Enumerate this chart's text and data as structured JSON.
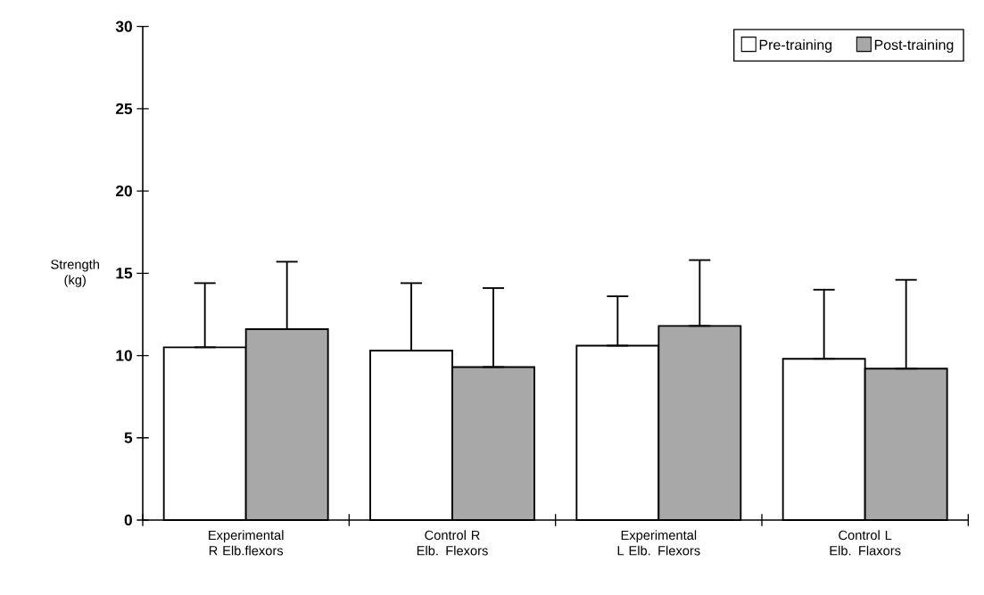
{
  "chart_data": {
    "type": "bar",
    "ylabel": "Strength (kg)",
    "categories": [
      "Experimental R Elb.flexors",
      "Control R Elb. Flexors",
      "Experimental L Elb. Flexors",
      "Control L Elb. Flaxors"
    ],
    "series": [
      {
        "name": "Pre-training",
        "color": "#ffffff",
        "values": [
          10.5,
          10.3,
          10.6,
          9.8
        ],
        "errors": [
          [
            10.5,
            14.4
          ],
          [
            10.3,
            14.4
          ],
          [
            10.6,
            13.6
          ],
          [
            9.8,
            14.0
          ]
        ]
      },
      {
        "name": "Post-training",
        "color": "#a8a8a8",
        "values": [
          11.6,
          9.3,
          11.8,
          9.2
        ],
        "errors": [
          [
            11.6,
            15.7
          ],
          [
            9.3,
            14.1
          ],
          [
            11.8,
            15.8
          ],
          [
            9.2,
            14.6
          ]
        ]
      }
    ],
    "ylim": [
      0,
      30
    ],
    "yticks": [
      0,
      5,
      10,
      15,
      20,
      25,
      30
    ],
    "grid": false,
    "legend": "top right"
  }
}
